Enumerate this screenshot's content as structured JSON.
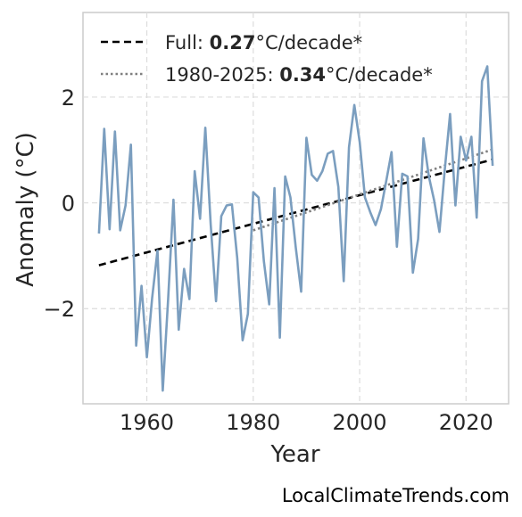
{
  "chart_data": {
    "type": "line",
    "xlabel": "Year",
    "ylabel": "Anomaly (°C)",
    "xlim": [
      1948,
      2028
    ],
    "ylim": [
      -3.8,
      3.6
    ],
    "x_ticks": [
      1960,
      1980,
      2000,
      2020
    ],
    "y_ticks": [
      {
        "value": -2,
        "label": "−2"
      },
      {
        "value": 0,
        "label": "0"
      },
      {
        "value": 2,
        "label": "2"
      }
    ],
    "grid": true,
    "legend_position": "top-left",
    "series": [
      {
        "color": "#7b9ebf",
        "x": [
          1951,
          1952,
          1953,
          1954,
          1955,
          1956,
          1957,
          1958,
          1959,
          1960,
          1961,
          1962,
          1963,
          1964,
          1965,
          1966,
          1967,
          1968,
          1969,
          1970,
          1971,
          1972,
          1973,
          1974,
          1975,
          1976,
          1977,
          1978,
          1979,
          1980,
          1981,
          1982,
          1983,
          1984,
          1985,
          1986,
          1987,
          1988,
          1989,
          1990,
          1991,
          1992,
          1993,
          1994,
          1995,
          1996,
          1997,
          1998,
          1999,
          2000,
          2001,
          2002,
          2003,
          2004,
          2005,
          2006,
          2007,
          2008,
          2009,
          2010,
          2011,
          2012,
          2013,
          2014,
          2015,
          2016,
          2017,
          2018,
          2019,
          2020,
          2021,
          2022,
          2023,
          2024,
          2025
        ],
        "y": [
          -0.58,
          1.4,
          -0.5,
          1.35,
          -0.52,
          -0.05,
          1.1,
          -2.7,
          -1.57,
          -2.92,
          -1.8,
          -0.9,
          -3.55,
          -1.83,
          0.06,
          -2.4,
          -1.25,
          -1.82,
          0.6,
          -0.3,
          1.42,
          -0.4,
          -1.86,
          -0.25,
          -0.05,
          -0.03,
          -1.05,
          -2.6,
          -2.1,
          0.2,
          0.1,
          -1.1,
          -1.92,
          0.28,
          -2.55,
          0.5,
          0.1,
          -0.85,
          -1.68,
          1.23,
          0.53,
          0.42,
          0.6,
          0.93,
          0.98,
          0.3,
          -1.48,
          1.05,
          1.85,
          1.15,
          0.1,
          -0.18,
          -0.42,
          -0.12,
          0.42,
          0.96,
          -0.83,
          0.55,
          0.5,
          -1.32,
          -0.68,
          1.22,
          0.5,
          0.05,
          -0.55,
          0.62,
          1.68,
          -0.05,
          1.25,
          0.8,
          1.25,
          -0.28,
          2.3,
          2.58,
          0.7
        ]
      }
    ],
    "trends": [
      {
        "label_prefix": "Full: ",
        "label_value": "0.27",
        "label_suffix": "°C/decade*",
        "style": "dashed",
        "color": "#000000",
        "x": [
          1951,
          2025
        ],
        "y": [
          -1.18,
          0.82
        ]
      },
      {
        "label_prefix": "1980-2025: ",
        "label_value": "0.34",
        "label_suffix": "°C/decade*",
        "style": "dotted",
        "color": "#808080",
        "x": [
          1980,
          2025
        ],
        "y": [
          -0.52,
          1.01
        ]
      }
    ]
  },
  "credit": "LocalClimateTrends.com"
}
